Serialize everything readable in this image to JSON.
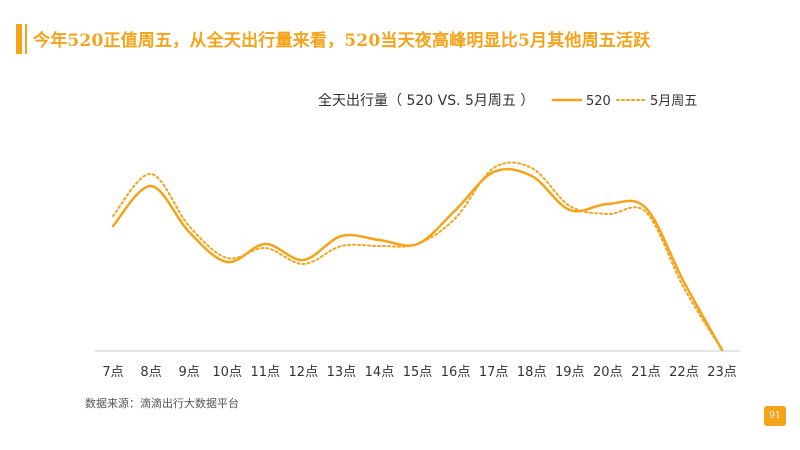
{
  "headline": "今年520正值周五，从全天出行量来看，520当天夜高峰明显比5月其他周五活跃",
  "source": "数据来源：滴滴出行大数据平台",
  "page_number": "91",
  "colors": {
    "accent": "#f5a31a",
    "series": "#f5a31a",
    "axis": "#cccccc"
  },
  "chart_data": {
    "type": "line",
    "title": "全天出行量（ 520 VS. 5月周五 ）",
    "xlabel": "",
    "ylabel": "",
    "categories": [
      "7点",
      "8点",
      "9点",
      "10点",
      "11点",
      "12点",
      "13点",
      "14点",
      "15点",
      "16点",
      "17点",
      "18点",
      "19点",
      "20点",
      "21点",
      "22点",
      "23点"
    ],
    "ylim": [
      0,
      100
    ],
    "grid": false,
    "legend": "top-right",
    "series": [
      {
        "name": "520",
        "style": "solid",
        "values": [
          62,
          82,
          59,
          44,
          53,
          45,
          57,
          55,
          53,
          70,
          89,
          87,
          70,
          73,
          71,
          34,
          0
        ]
      },
      {
        "name": "5月周五",
        "style": "dotted",
        "values": [
          67,
          88,
          62,
          46,
          51,
          43,
          52,
          52,
          53,
          66,
          91,
          91,
          72,
          68,
          69,
          31,
          0
        ]
      }
    ]
  }
}
